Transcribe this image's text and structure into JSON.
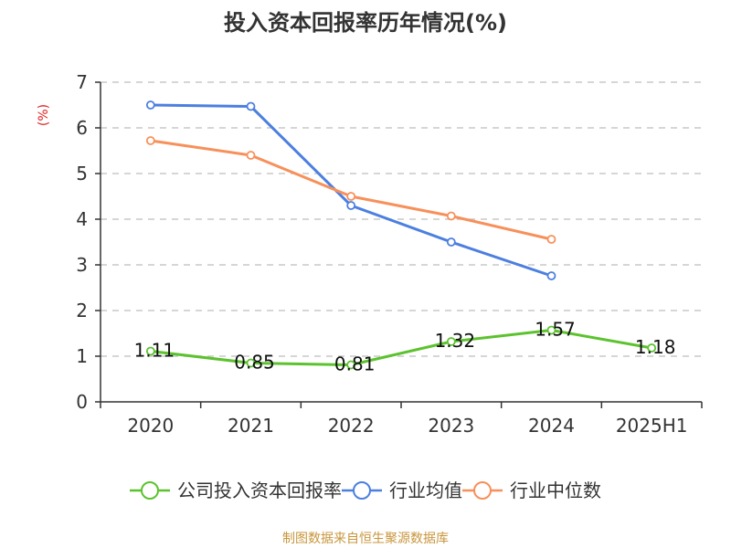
{
  "colors": {
    "company": "#5cc22e",
    "industry_avg": "#4c7fe0",
    "industry_median": "#f7905a",
    "unit": "#e02020",
    "source": "#c8963c",
    "grid": "#c8c8c8",
    "axis": "#333333"
  },
  "source_text": "制图数据来自恒生聚源数据库",
  "chart_data": {
    "type": "line",
    "title": "投入资本回报率历年情况(%)",
    "ylabel": "(%)",
    "xlabel": "",
    "ylim": [
      0,
      7
    ],
    "yticks": [
      0,
      1,
      2,
      3,
      4,
      5,
      6,
      7
    ],
    "categories": [
      "2020",
      "2021",
      "2022",
      "2023",
      "2024",
      "2025H1"
    ],
    "grid": true,
    "legend_position": "bottom",
    "series": [
      {
        "name": "公司投入资本回报率",
        "color_key": "company",
        "values": [
          1.11,
          0.85,
          0.81,
          1.32,
          1.57,
          1.18
        ],
        "labels": [
          "1.11",
          "0.85",
          "0.81",
          "1.32",
          "1.57",
          "1.18"
        ]
      },
      {
        "name": "行业均值",
        "color_key": "industry_avg",
        "values": [
          6.5,
          6.47,
          4.3,
          3.5,
          2.76,
          null
        ],
        "labels": null
      },
      {
        "name": "行业中位数",
        "color_key": "industry_median",
        "values": [
          5.72,
          5.4,
          4.5,
          4.07,
          3.56,
          null
        ],
        "labels": null
      }
    ]
  }
}
